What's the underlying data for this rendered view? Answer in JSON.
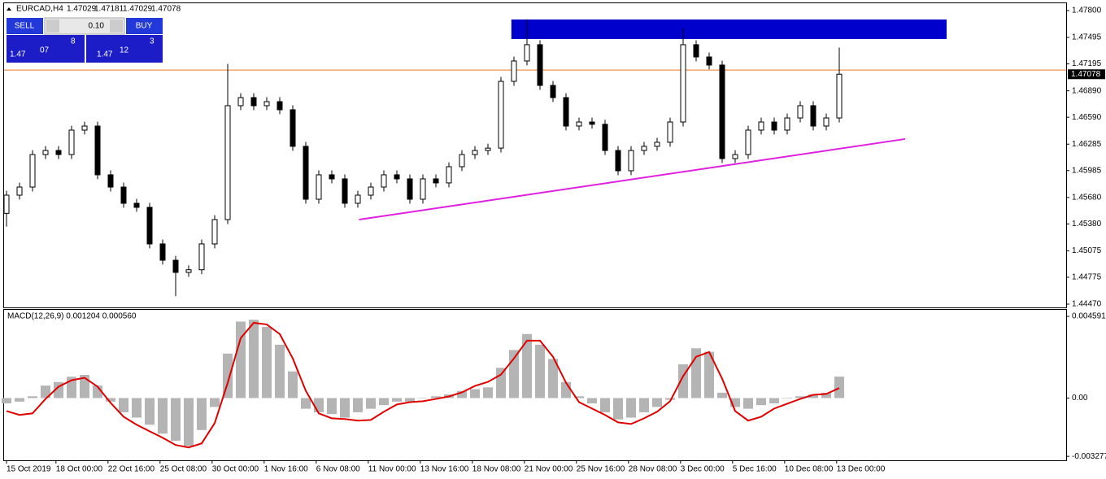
{
  "header": {
    "symbol": "EURCAD,H4",
    "ohlc": [
      "1.47029",
      "1.47181",
      "1.47029",
      "1.47078"
    ]
  },
  "trade_panel": {
    "sell": "SELL",
    "buy": "BUY",
    "lot": "0.10",
    "bid": [
      "1.47",
      "07",
      "8"
    ],
    "ask": [
      "1.47",
      "12",
      "3"
    ]
  },
  "chart_data": [
    {
      "type": "candlestick",
      "up_color": "#ffffff",
      "down_color": "#000000",
      "xlim": [
        -0.1875,
        81.4375
      ],
      "ylim": [
        1.44433,
        1.47883
      ],
      "yticks": [
        {
          "value": 1.478,
          "label": "1.47800"
        },
        1.47495,
        1.47195,
        {
          "value": 1.4689,
          "label": "1.46890"
        },
        {
          "value": 1.4659,
          "label": "1.46590"
        },
        1.46285,
        1.45985,
        {
          "value": 1.4568,
          "label": "1.45680"
        },
        {
          "value": 1.4538,
          "label": "1.45380"
        },
        1.45075,
        1.44775,
        {
          "value": 1.4447,
          "label": "1.44470"
        }
      ],
      "open": [
        1.455,
        1.45706,
        1.45798,
        1.46167,
        1.46213,
        1.46167,
        1.46444,
        1.4649,
        1.45937,
        1.45798,
        1.45614,
        1.45568,
        1.45153,
        1.44968,
        1.4483,
        1.4486,
        1.45153,
        1.45429,
        1.46721,
        1.46813,
        1.46721,
        1.46767,
        1.46675,
        1.4626,
        1.4566,
        1.45937,
        1.45891,
        1.45614,
        1.45706,
        1.45798,
        1.45937,
        1.45891,
        1.4566,
        1.45891,
        1.45845,
        1.46029,
        1.46167,
        1.46213,
        1.4624,
        1.46997,
        1.47228,
        1.47413,
        1.46951,
        1.46813,
        1.4649,
        1.46536,
        1.4651,
        1.46213,
        1.45983,
        1.46213,
        1.4626,
        1.46306,
        1.46536,
        1.47413,
        1.47274,
        1.47182,
        1.46121,
        1.46167,
        1.46444,
        1.46536,
        1.46444,
        1.46582,
        1.46721,
        1.4649,
        1.46582
      ],
      "high": [
        1.45756,
        1.45848,
        1.46217,
        1.46263,
        1.46263,
        1.46494,
        1.4654,
        1.4654,
        1.45987,
        1.45848,
        1.45664,
        1.45618,
        1.45203,
        1.45018,
        1.4491,
        1.45203,
        1.45479,
        1.47195,
        1.46863,
        1.46863,
        1.46817,
        1.46817,
        1.46725,
        1.4631,
        1.45987,
        1.45987,
        1.45941,
        1.45756,
        1.45848,
        1.45987,
        1.45987,
        1.45941,
        1.45941,
        1.45941,
        1.46079,
        1.46217,
        1.46263,
        1.4629,
        1.47047,
        1.47278,
        1.477,
        1.47463,
        1.47001,
        1.46863,
        1.46586,
        1.46586,
        1.4656,
        1.46263,
        1.46263,
        1.4631,
        1.46356,
        1.46586,
        1.476,
        1.47463,
        1.47324,
        1.47232,
        1.46217,
        1.46494,
        1.46586,
        1.46586,
        1.46632,
        1.46771,
        1.46771,
        1.46632,
        1.4738
      ],
      "low": [
        1.4535,
        1.45656,
        1.45748,
        1.46117,
        1.46117,
        1.46117,
        1.46394,
        1.45887,
        1.45748,
        1.45564,
        1.45518,
        1.45103,
        1.44918,
        1.4456,
        1.4478,
        1.4481,
        1.45103,
        1.45379,
        1.46671,
        1.46671,
        1.46671,
        1.46625,
        1.4621,
        1.4561,
        1.4561,
        1.45841,
        1.45564,
        1.45564,
        1.45656,
        1.45748,
        1.45841,
        1.4561,
        1.4561,
        1.45795,
        1.45795,
        1.45979,
        1.46117,
        1.46163,
        1.4619,
        1.46947,
        1.47178,
        1.46901,
        1.46763,
        1.4644,
        1.4644,
        1.4646,
        1.46163,
        1.45933,
        1.45933,
        1.46163,
        1.4621,
        1.46256,
        1.46486,
        1.47224,
        1.47132,
        1.46071,
        1.46071,
        1.46117,
        1.46394,
        1.46394,
        1.46394,
        1.46532,
        1.4644,
        1.4644,
        1.46532
      ],
      "close": [
        1.45706,
        1.45798,
        1.46167,
        1.46213,
        1.46167,
        1.46444,
        1.4649,
        1.45937,
        1.45798,
        1.45614,
        1.45568,
        1.45153,
        1.44968,
        1.4483,
        1.4486,
        1.45153,
        1.45429,
        1.46721,
        1.46813,
        1.46721,
        1.46767,
        1.46675,
        1.4626,
        1.4566,
        1.45937,
        1.45891,
        1.45614,
        1.45706,
        1.45798,
        1.45937,
        1.45891,
        1.4566,
        1.45891,
        1.45845,
        1.46029,
        1.46167,
        1.46213,
        1.4624,
        1.46997,
        1.47228,
        1.47413,
        1.46951,
        1.46813,
        1.4649,
        1.46536,
        1.4651,
        1.46213,
        1.45983,
        1.46213,
        1.4626,
        1.46306,
        1.46536,
        1.47413,
        1.47274,
        1.47182,
        1.46121,
        1.46167,
        1.46444,
        1.46536,
        1.46444,
        1.46582,
        1.46721,
        1.4649,
        1.46582,
        1.47078
      ],
      "last_price": 1.47078,
      "level": {
        "value": 1.47125,
        "color": "#f07820"
      },
      "zone": {
        "from": 38.8,
        "to": 72.25,
        "top": 1.47699,
        "bottom": 1.47477,
        "color": "#0000cc"
      },
      "trendline": {
        "x": [
          27.1,
          69.06
        ],
        "y": [
          1.45429,
          1.46343
        ],
        "color": "#e020e0"
      }
    },
    {
      "type": "macd",
      "label": "MACD(12,26,9) 0.001204 0.000560",
      "xlim": [
        -0.1875,
        81.4375
      ],
      "ylim": [
        -0.0035,
        0.00496
      ],
      "yticks": [
        0.004591,
        {
          "value": 0,
          "label": "0.00"
        },
        -0.003277
      ],
      "histogram": {
        "color": "#b4b4b4",
        "values": [
          -0.0003,
          -0.0002,
          0.0001,
          0.0007,
          0.0009,
          0.0012,
          0.0013,
          0.0007,
          -0.0002,
          -0.0008,
          -0.0011,
          -0.0015,
          -0.002,
          -0.0024,
          -0.0027,
          -0.0018,
          -0.0005,
          0.0025,
          0.0043,
          0.0044,
          0.004,
          0.003,
          0.0015,
          -0.0006,
          -0.0008,
          -0.0009,
          -0.0011,
          -0.0008,
          -0.0006,
          -0.0004,
          -0.0002,
          -0.0002,
          0,
          0.0001,
          0.0002,
          0.0004,
          0.0005,
          0.0006,
          0.0017,
          0.0027,
          0.0036,
          0.003,
          0.0022,
          0.0009,
          0.0001,
          -0.0003,
          -0.0008,
          -0.0012,
          -0.0011,
          -0.0008,
          -0.0005,
          -0.0001,
          0.0019,
          0.0028,
          0.0026,
          0.0003,
          -0.0005,
          -0.0006,
          -0.0004,
          -0.0003,
          0,
          0.0001,
          0.0002,
          0.0003,
          0.001204
        ]
      },
      "signal": {
        "color": "#e00000",
        "values": [
          -0.00073,
          -0.00095,
          -0.00086,
          -5e-05,
          0.00064,
          0.001,
          0.00114,
          0.00064,
          -0.00027,
          -0.00105,
          -0.0015,
          -0.00187,
          -0.00223,
          -0.00264,
          -0.00278,
          -0.00255,
          -0.00141,
          0.00086,
          0.00337,
          0.00423,
          0.00414,
          0.0036,
          0.00223,
          0.00041,
          -0.00086,
          -0.00114,
          -0.00118,
          -0.00127,
          -0.00123,
          -0.00077,
          -0.00036,
          -0.00023,
          -0.00018,
          -5e-05,
          9e-05,
          0.00032,
          0.00068,
          0.00091,
          0.00132,
          0.00223,
          0.00323,
          0.00323,
          0.00232,
          0.00086,
          -0.00023,
          -0.00059,
          -0.00095,
          -0.00137,
          -0.00146,
          -0.00114,
          -0.00077,
          -0.00018,
          0.00123,
          0.00232,
          0.00259,
          0.00109,
          -0.00073,
          -0.00127,
          -0.00105,
          -0.00059,
          -0.00032,
          -5e-05,
          0.00018,
          0.00023,
          0.00056
        ]
      },
      "xticks": [
        {
          "value": 0,
          "label": "15 Oct 2019"
        },
        {
          "value": 3.8,
          "label": "18 Oct 00:00"
        },
        {
          "value": 7.8,
          "label": "22 Oct 16:00"
        },
        {
          "value": 11.8,
          "label": "25 Oct 08:00"
        },
        {
          "value": 15.8,
          "label": "30 Oct 00:00"
        },
        {
          "value": 19.8,
          "label": "1 Nov 16:00"
        },
        {
          "value": 23.8,
          "label": "6 Nov 08:00"
        },
        {
          "value": 27.8,
          "label": "11 Nov 00:00"
        },
        {
          "value": 31.8,
          "label": "13 Nov 16:00"
        },
        {
          "value": 35.8,
          "label": "18 Nov 08:00"
        },
        {
          "value": 39.8,
          "label": "21 Nov 00:00"
        },
        {
          "value": 43.8,
          "label": "25 Nov 16:00"
        },
        {
          "value": 47.8,
          "label": "28 Nov 08:00"
        },
        {
          "value": 51.8,
          "label": "3 Dec 00:00"
        },
        {
          "value": 55.8,
          "label": "5 Dec 16:00"
        },
        {
          "value": 59.8,
          "label": "10 Dec 08:00"
        },
        {
          "value": 63.8,
          "label": "13 Dec 00:00"
        }
      ]
    }
  ]
}
